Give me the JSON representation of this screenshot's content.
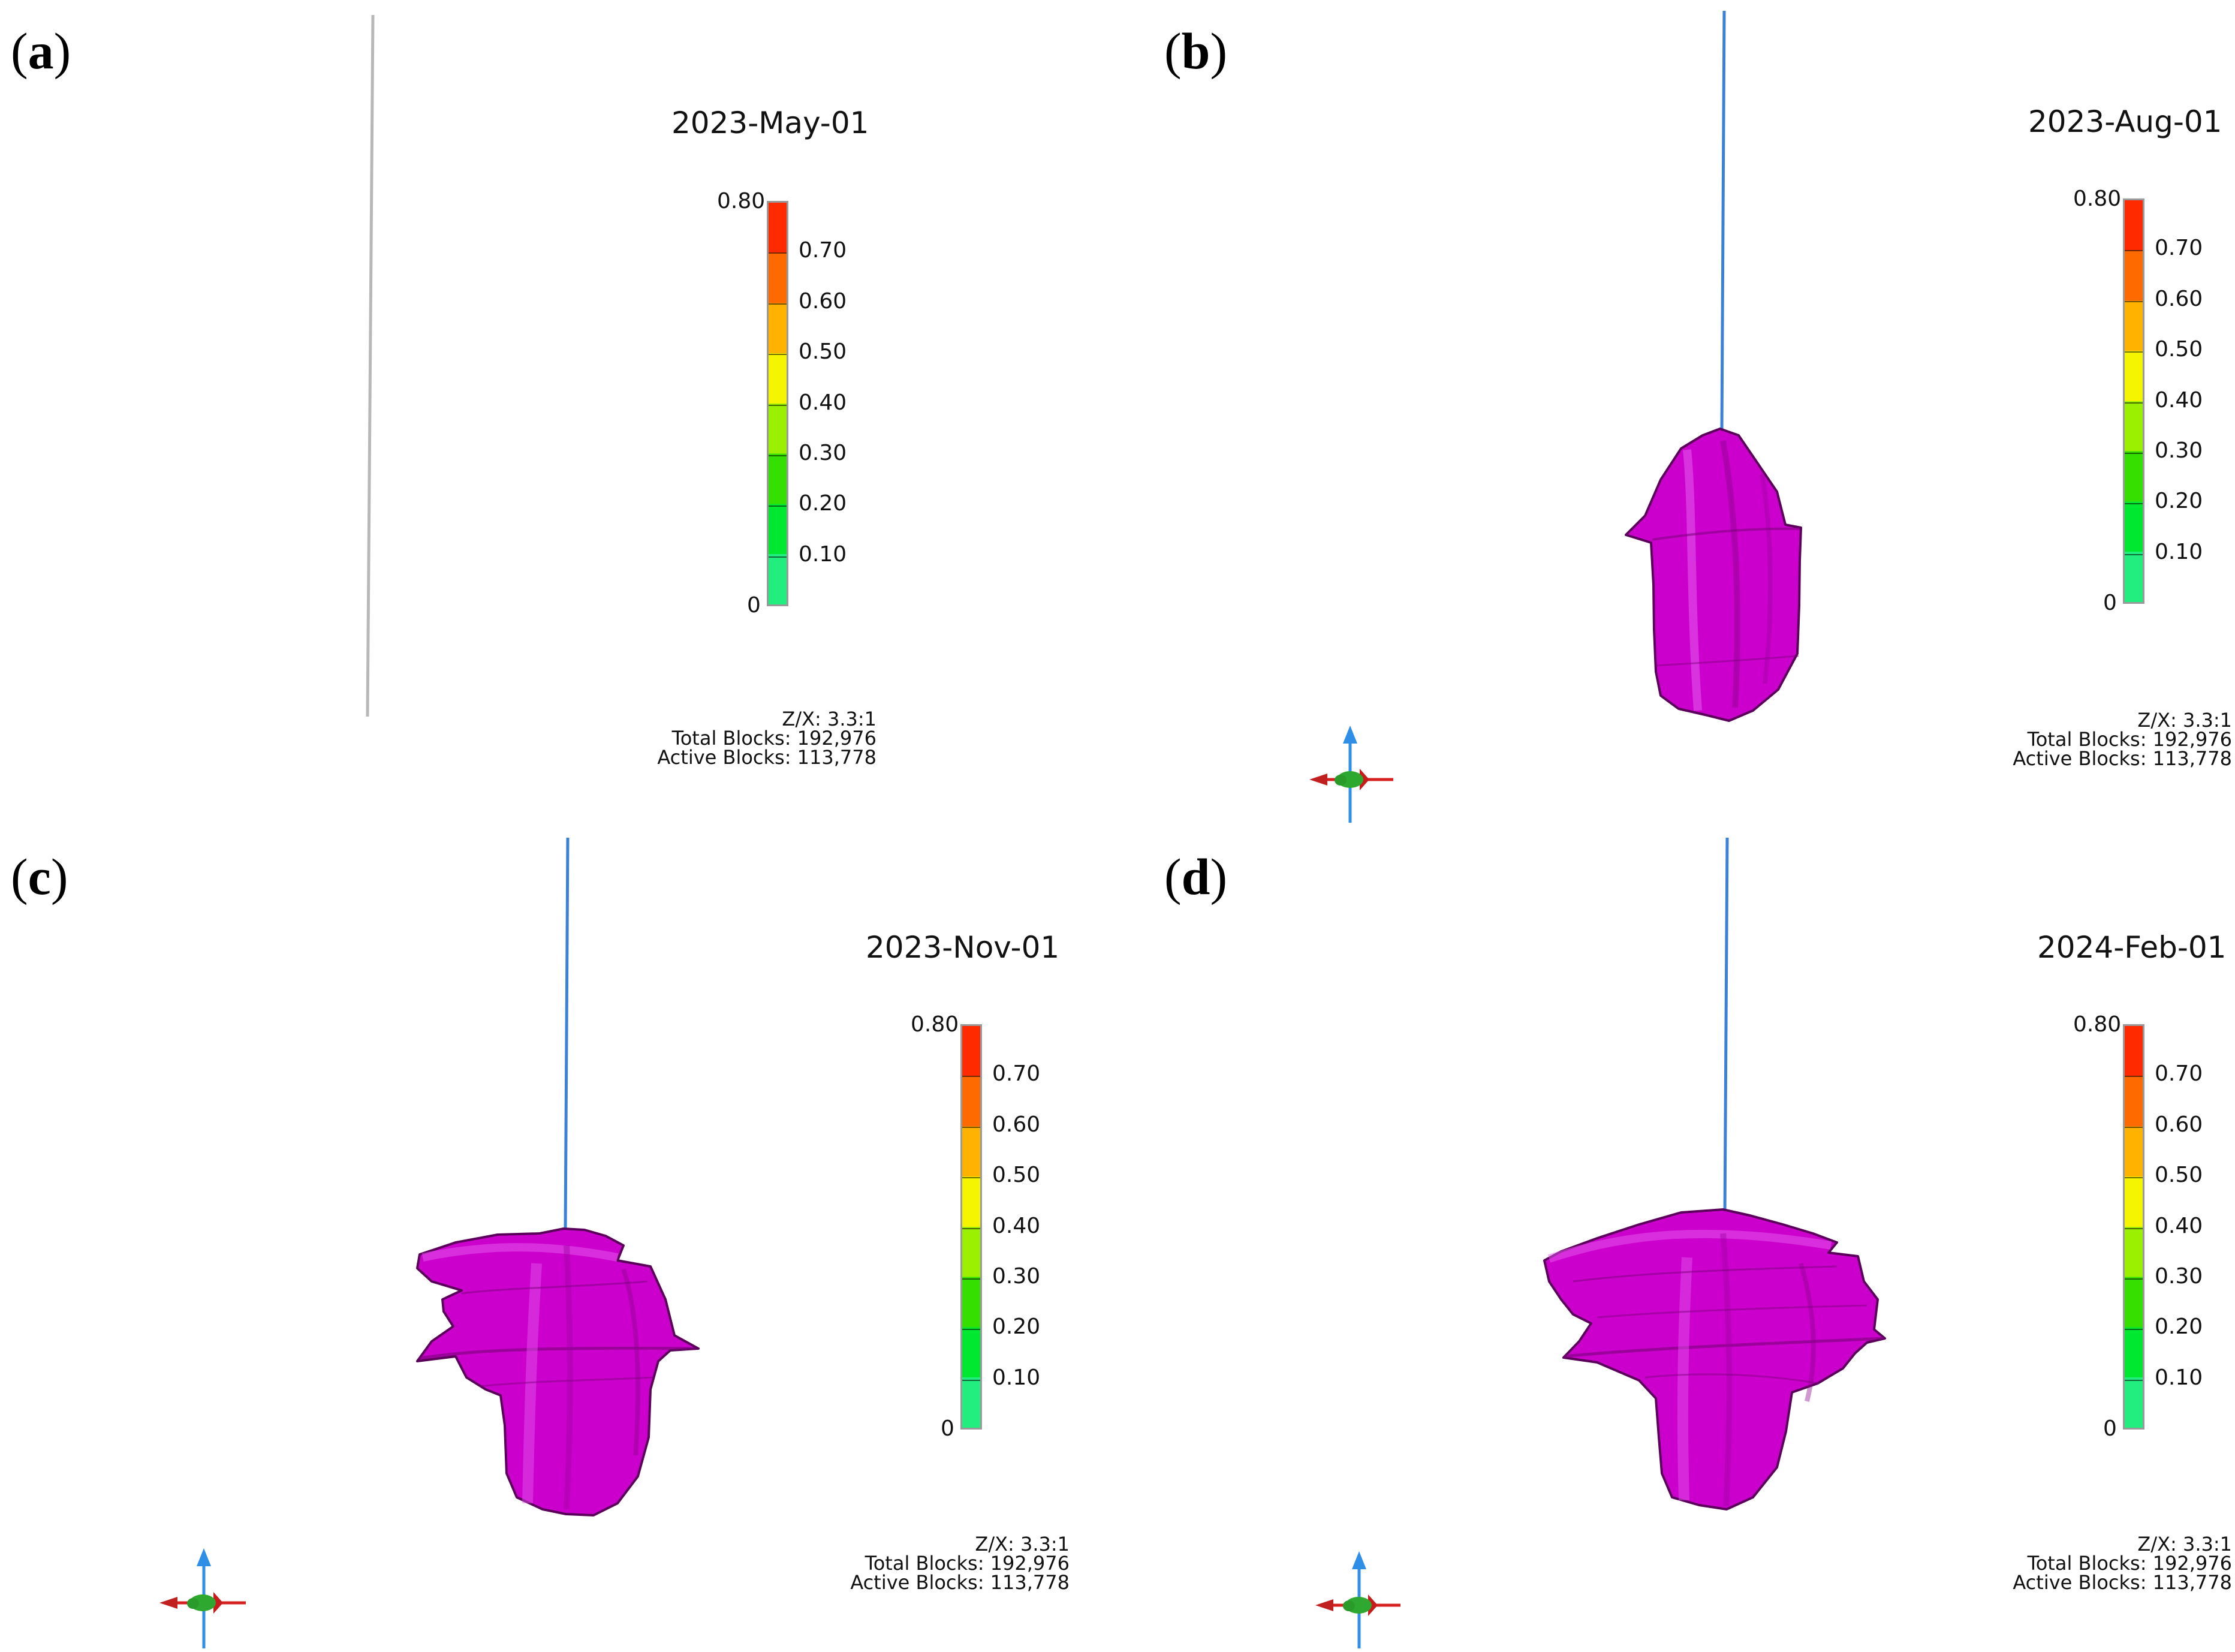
{
  "panels": [
    {
      "label": "a",
      "date": "2023-May-01",
      "colorbar": {
        "max": "0.80",
        "ticks": [
          "0.70",
          "0.60",
          "0.50",
          "0.40",
          "0.30",
          "0.20",
          "0.10"
        ],
        "min": "0"
      },
      "info": {
        "ratio": "Z/X: 3.3:1",
        "total": "Total Blocks: 192,976",
        "active": "Active Blocks: 113,778"
      }
    },
    {
      "label": "b",
      "date": "2023-Aug-01",
      "colorbar": {
        "max": "0.80",
        "ticks": [
          "0.70",
          "0.60",
          "0.50",
          "0.40",
          "0.30",
          "0.20",
          "0.10"
        ],
        "min": "0"
      },
      "info": {
        "ratio": "Z/X: 3.3:1",
        "total": "Total Blocks: 192,976",
        "active": "Active Blocks: 113,778"
      }
    },
    {
      "label": "c",
      "date": "2023-Nov-01",
      "colorbar": {
        "max": "0.80",
        "ticks": [
          "0.70",
          "0.60",
          "0.50",
          "0.40",
          "0.30",
          "0.20",
          "0.10"
        ],
        "min": "0"
      },
      "info": {
        "ratio": "Z/X: 3.3:1",
        "total": "Total Blocks: 192,976",
        "active": "Active Blocks: 113,778"
      }
    },
    {
      "label": "d",
      "date": "2024-Feb-01",
      "colorbar": {
        "max": "0.80",
        "ticks": [
          "0.70",
          "0.60",
          "0.50",
          "0.40",
          "0.30",
          "0.20",
          "0.10"
        ],
        "min": "0"
      },
      "info": {
        "ratio": "Z/X: 3.3:1",
        "total": "Total Blocks: 192,976",
        "active": "Active Blocks: 113,778"
      }
    }
  ],
  "colors": {
    "plume": "#cc00cc",
    "plume_dark": "#8a008a",
    "plume_light": "#e040f0",
    "well": "#3b82d6",
    "well_a": "#b8b8b8",
    "axis_z": "#2f8fe6",
    "axis_x": "#d62020",
    "axis_y": "#2ea82e"
  },
  "icons": {
    "orientation": "orientation-axes-icon"
  }
}
